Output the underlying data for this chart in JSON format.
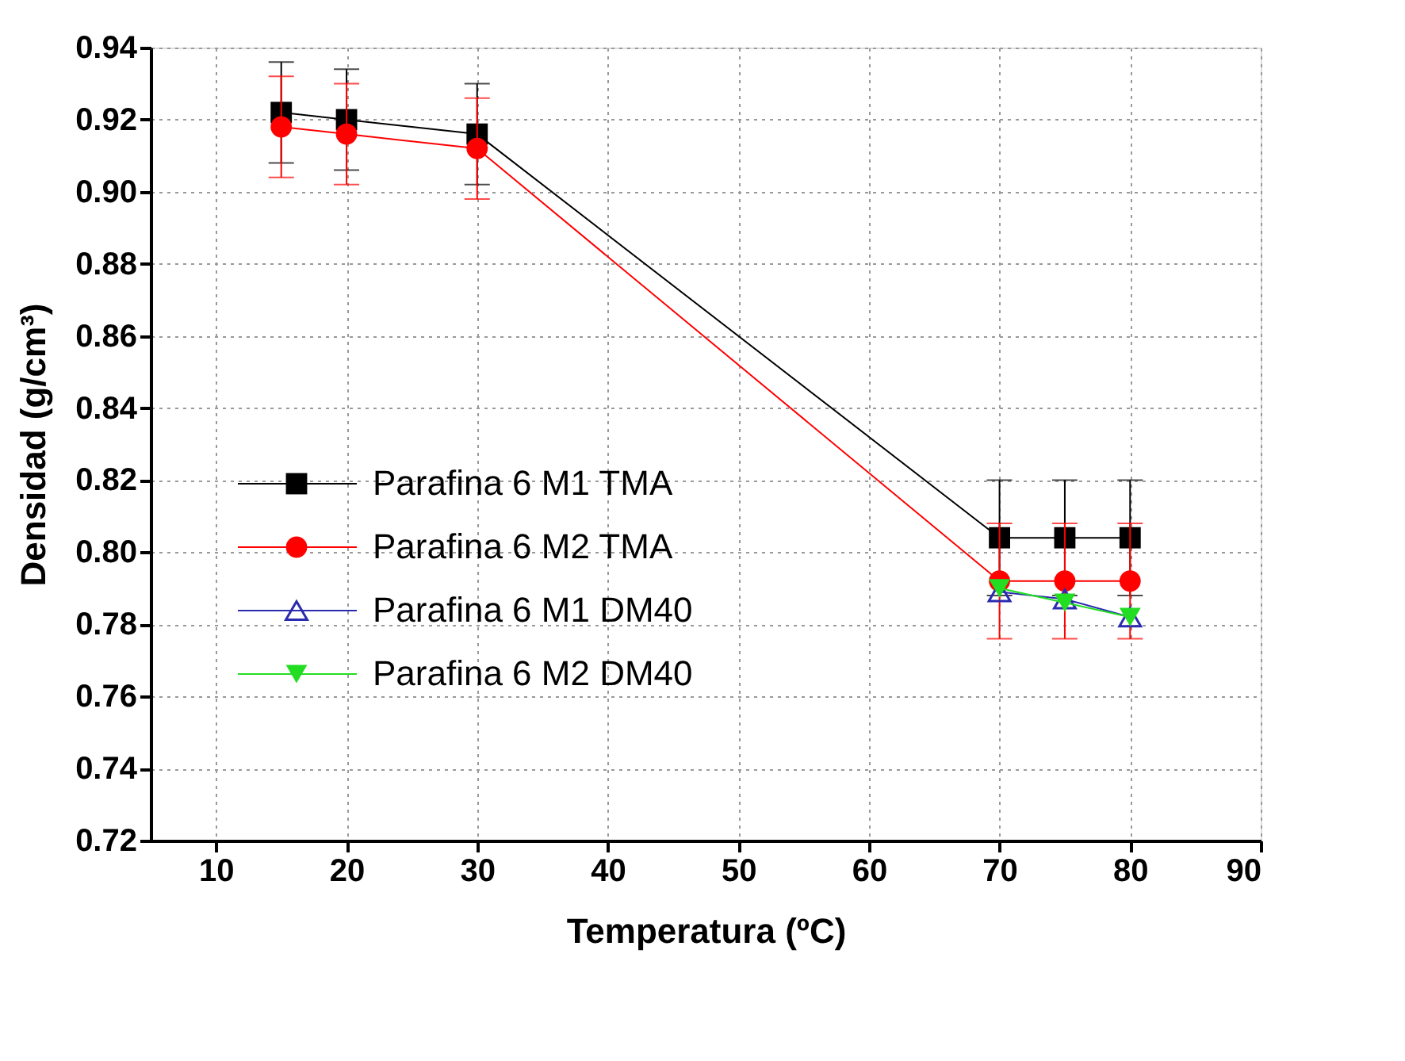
{
  "chart_data": {
    "type": "line",
    "xlabel": "Temperatura (ºC)",
    "ylabel": "Densidad (g/cm³)",
    "x": [
      15,
      20,
      30,
      70,
      75,
      80
    ],
    "xlim": [
      5,
      90
    ],
    "xticks": [
      10,
      20,
      30,
      40,
      50,
      60,
      70,
      80,
      90
    ],
    "ylim": [
      0.72,
      0.94
    ],
    "yticks": [
      0.72,
      0.74,
      0.76,
      0.78,
      {
        "value": 0.8,
        "label": "0.80"
      },
      0.82,
      0.84,
      0.86,
      0.88,
      {
        "value": 0.9,
        "label": "0.90"
      },
      0.92,
      0.94
    ],
    "grid": true,
    "legend": "left",
    "series": [
      {
        "name": "Parafina 6 M1 TMA",
        "color": "#000000",
        "marker": "square",
        "values": [
          0.922,
          0.92,
          0.916,
          0.804,
          0.804,
          0.804
        ],
        "errors": [
          0.014,
          0.014,
          0.014,
          0.016,
          0.016,
          0.016
        ]
      },
      {
        "name": "Parafina 6 M2 TMA",
        "color": "#ff0000",
        "marker": "circle",
        "values": [
          0.918,
          0.916,
          0.912,
          0.792,
          0.792,
          0.792
        ],
        "errors": [
          0.014,
          0.014,
          0.014,
          0.016,
          0.016,
          0.016
        ]
      },
      {
        "name": "Parafina 6 M1 DM40",
        "color": "#2b2bb0",
        "marker": "triangle",
        "x": [
          70,
          75,
          80
        ],
        "values": [
          0.789,
          0.787,
          0.782
        ]
      },
      {
        "name": "Parafina 6 M2 DM40",
        "color": "#22dd22",
        "marker": "triangle-down",
        "x": [
          70,
          75,
          80
        ],
        "values": [
          0.79,
          0.786,
          0.782
        ]
      }
    ]
  }
}
